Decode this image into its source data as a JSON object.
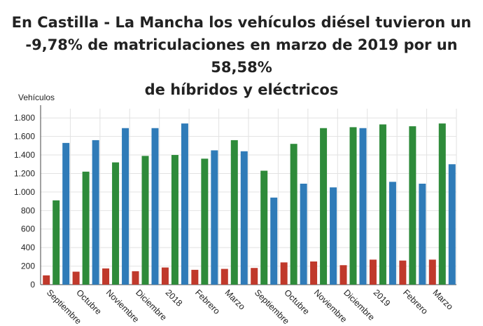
{
  "chart_data": {
    "type": "bar",
    "title_lines": [
      "En Castilla - La Mancha los vehículos diésel tuvieron un",
      "-9,78% de matriculaciones en marzo de 2019 por un 58,58%",
      "de híbridos y eléctricos"
    ],
    "ylabel": "Vehículos",
    "xlabel": "",
    "ylim": [
      0,
      1900
    ],
    "yticks": [
      0,
      200,
      400,
      600,
      800,
      1000,
      1200,
      1400,
      1600,
      1800
    ],
    "ytick_labels": [
      "0",
      "200",
      "400",
      "600",
      "800",
      "1.000",
      "1.200",
      "1.400",
      "1.600",
      "1.800"
    ],
    "grid": true,
    "categories": [
      "Septiembre",
      "Octubre",
      "Noviembre",
      "Diciembre",
      "2018",
      "Febrero",
      "Marzo",
      "Septiembre",
      "Octubre",
      "Noviembre",
      "Diciembre",
      "2019",
      "Febrero",
      "Marzo"
    ],
    "series": [
      {
        "color": "#c0392b",
        "values": [
          100,
          140,
          175,
          145,
          185,
          160,
          170,
          180,
          240,
          250,
          210,
          270,
          260,
          270
        ]
      },
      {
        "color": "#2e8b3a",
        "values": [
          910,
          1220,
          1320,
          1390,
          1400,
          1360,
          1560,
          1230,
          1520,
          1690,
          1700,
          1730,
          1710,
          1740
        ]
      },
      {
        "color": "#2f7bb8",
        "values": [
          1530,
          1560,
          1690,
          1690,
          1740,
          1450,
          1440,
          940,
          1090,
          1050,
          1690,
          1110,
          1090,
          1300
        ]
      }
    ]
  }
}
